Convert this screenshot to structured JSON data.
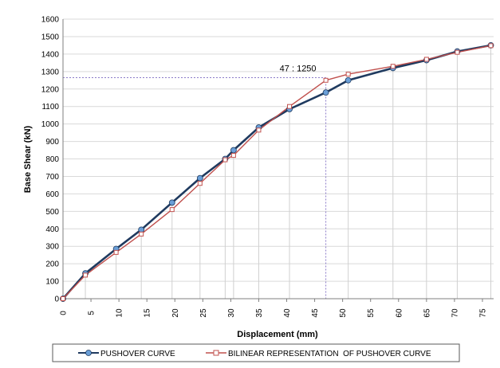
{
  "chart_data": {
    "type": "line",
    "xlabel": "Displacement (mm)",
    "ylabel": "Base Shear (kN)",
    "xlim": [
      0,
      77
    ],
    "ylim": [
      0,
      1600
    ],
    "x_ticks": [
      0,
      5,
      10,
      15,
      20,
      25,
      30,
      35,
      40,
      45,
      50,
      55,
      60,
      65,
      70,
      75
    ],
    "y_ticks": [
      0,
      100,
      200,
      300,
      400,
      500,
      600,
      700,
      800,
      900,
      1000,
      1100,
      1200,
      1300,
      1400,
      1500,
      1600
    ],
    "grid": "horizontal",
    "legend_position": "bottom",
    "annotation": {
      "text": "47 : 1250",
      "x": 47,
      "y": 1265
    },
    "series": [
      {
        "name": "PUSHOVER CURVE",
        "color": "#1f3a5f",
        "marker_color": "#6a9fd8",
        "marker": "circle",
        "points": [
          [
            0,
            0
          ],
          [
            4,
            145
          ],
          [
            9.5,
            285
          ],
          [
            14,
            395
          ],
          [
            19.5,
            550
          ],
          [
            24.5,
            690
          ],
          [
            29,
            800
          ],
          [
            30.5,
            850
          ],
          [
            35,
            980
          ],
          [
            40.5,
            1085
          ],
          [
            47,
            1180
          ],
          [
            51,
            1250
          ],
          [
            59,
            1320
          ],
          [
            65,
            1365
          ],
          [
            70.5,
            1415
          ],
          [
            76.5,
            1450
          ]
        ]
      },
      {
        "name": "BILINEAR REPRESENTATION  OF PUSHOVER CURVE",
        "color": "#c0504d",
        "marker_color": "#c0504d",
        "marker": "square",
        "points": [
          [
            0,
            0
          ],
          [
            4,
            135
          ],
          [
            9.5,
            265
          ],
          [
            14,
            370
          ],
          [
            19.5,
            510
          ],
          [
            24.5,
            660
          ],
          [
            29,
            795
          ],
          [
            30.5,
            820
          ],
          [
            35,
            965
          ],
          [
            40.5,
            1100
          ],
          [
            47,
            1250
          ],
          [
            51,
            1285
          ],
          [
            59,
            1330
          ],
          [
            65,
            1370
          ],
          [
            70.5,
            1410
          ],
          [
            76.5,
            1448
          ]
        ]
      }
    ],
    "drop_lines_x": [
      4,
      9.5,
      14,
      19.5,
      24.5,
      29,
      30.5,
      35,
      40.5,
      51,
      59,
      65,
      70.5,
      76.5
    ],
    "reference_point": {
      "x": 47,
      "y": 1265
    }
  }
}
